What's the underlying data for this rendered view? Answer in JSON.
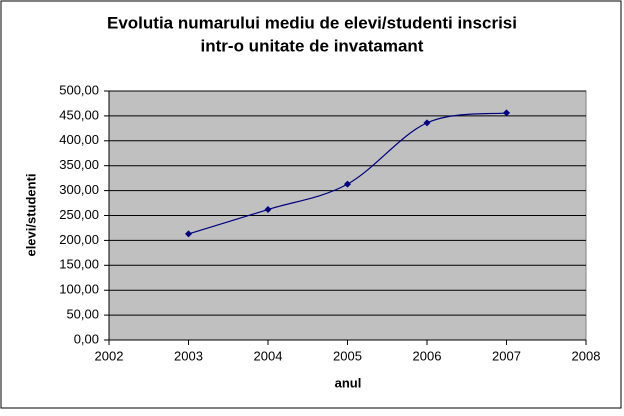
{
  "chart_data": {
    "type": "line",
    "title": [
      "Evolutia numarului mediu de elevi/studenti inscrisi",
      "intr-o unitate de invatamant"
    ],
    "x_label": "anul",
    "y_label": "elevi/studenti",
    "x": [
      2003,
      2004,
      2005,
      2006,
      2007
    ],
    "series": [
      {
        "color": "#000080",
        "values": [
          213,
          262,
          313,
          436,
          456
        ]
      }
    ],
    "xlim": [
      2002,
      2008
    ],
    "xticks": [
      2002,
      2003,
      2004,
      2005,
      2006,
      2007,
      2008
    ],
    "ylim": [
      0,
      500
    ],
    "yticks": [
      {
        "value": 0,
        "label": "0,00"
      },
      {
        "value": 50,
        "label": "50,00"
      },
      {
        "value": 100,
        "label": "100,00"
      },
      {
        "value": 150,
        "label": "150,00"
      },
      {
        "value": 200,
        "label": "200,00"
      },
      {
        "value": 250,
        "label": "250,00"
      },
      {
        "value": 300,
        "label": "300,00"
      },
      {
        "value": 350,
        "label": "350,00"
      },
      {
        "value": 400,
        "label": "400,00"
      },
      {
        "value": 450,
        "label": "450,00"
      },
      {
        "value": 500,
        "label": "500,00"
      }
    ],
    "grid": true,
    "smooth": true,
    "plot_background": "#c0c0c0"
  }
}
